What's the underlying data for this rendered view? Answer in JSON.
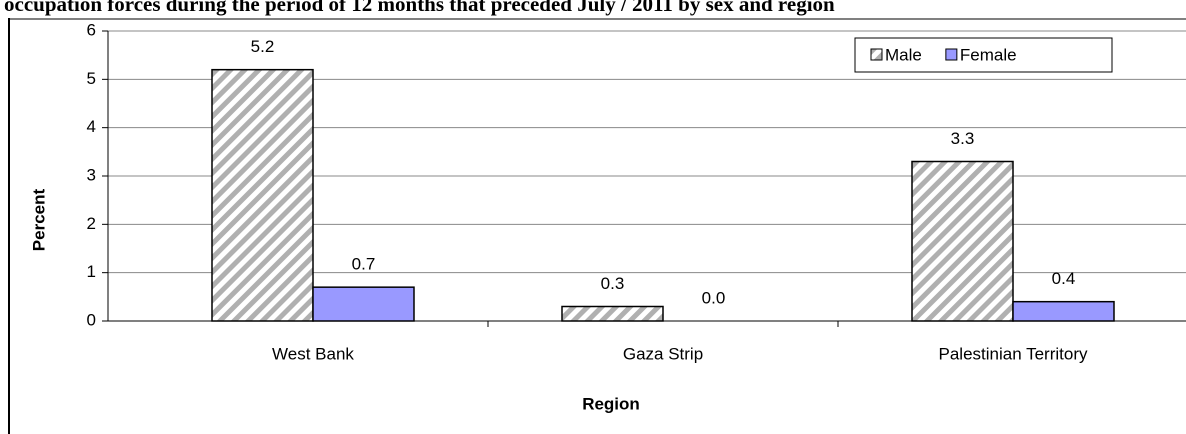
{
  "chart_data": {
    "type": "bar",
    "title": "occupation forces during the period of 12 months that preceded July / 2011 by sex and region",
    "x_label": "Region",
    "y_label": "Percent",
    "categories": [
      "West Bank",
      "Gaza Strip",
      "Palestinian Territory"
    ],
    "series": [
      {
        "name": "Male",
        "color": "#c0c0c0",
        "pattern": "diagonal-stripes",
        "values": [
          5.2,
          0.3,
          3.3
        ],
        "value_labels": [
          "5.2",
          "0.3",
          "3.3"
        ]
      },
      {
        "name": "Female",
        "color": "#9999ff",
        "values": [
          0.7,
          0,
          0.4
        ],
        "value_labels": [
          "0.7",
          "0.0",
          "0.4"
        ]
      }
    ],
    "ylim": [
      0,
      6
    ],
    "yticks": [
      0,
      1,
      2,
      3,
      4,
      5,
      6
    ],
    "grid": true,
    "legend": "upper right"
  }
}
